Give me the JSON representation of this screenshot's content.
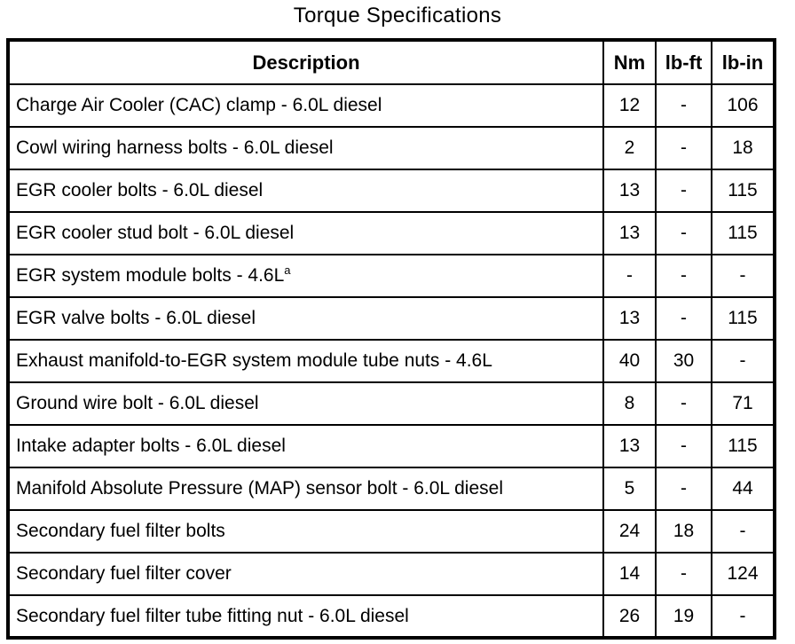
{
  "title": "Torque Specifications",
  "colors": {
    "background": "#ffffff",
    "border": "#000000",
    "text": "#000000"
  },
  "table": {
    "headers": [
      "Description",
      "Nm",
      "lb-ft",
      "lb-in"
    ],
    "rows": [
      {
        "description": "Charge Air Cooler (CAC) clamp - 6.0L diesel",
        "sup": "",
        "nm": "12",
        "lbft": "-",
        "lbin": "106"
      },
      {
        "description": "Cowl wiring harness bolts - 6.0L diesel",
        "sup": "",
        "nm": "2",
        "lbft": "-",
        "lbin": "18"
      },
      {
        "description": "EGR cooler bolts - 6.0L diesel",
        "sup": "",
        "nm": "13",
        "lbft": "-",
        "lbin": "115"
      },
      {
        "description": "EGR cooler stud bolt - 6.0L diesel",
        "sup": "",
        "nm": "13",
        "lbft": "-",
        "lbin": "115"
      },
      {
        "description": "EGR system module bolts - 4.6L",
        "sup": "a",
        "nm": "-",
        "lbft": "-",
        "lbin": "-"
      },
      {
        "description": "EGR valve bolts - 6.0L diesel",
        "sup": "",
        "nm": "13",
        "lbft": "-",
        "lbin": "115"
      },
      {
        "description": "Exhaust manifold-to-EGR system module tube nuts - 4.6L",
        "sup": "",
        "nm": "40",
        "lbft": "30",
        "lbin": "-"
      },
      {
        "description": "Ground wire bolt - 6.0L diesel",
        "sup": "",
        "nm": "8",
        "lbft": "-",
        "lbin": "71"
      },
      {
        "description": "Intake adapter bolts - 6.0L diesel",
        "sup": "",
        "nm": "13",
        "lbft": "-",
        "lbin": "115"
      },
      {
        "description": "Manifold Absolute Pressure (MAP) sensor bolt - 6.0L diesel",
        "sup": "",
        "nm": "5",
        "lbft": "-",
        "lbin": "44"
      },
      {
        "description": "Secondary fuel filter bolts",
        "sup": "",
        "nm": "24",
        "lbft": "18",
        "lbin": "-"
      },
      {
        "description": "Secondary fuel filter cover",
        "sup": "",
        "nm": "14",
        "lbft": "-",
        "lbin": "124"
      },
      {
        "description": "Secondary fuel filter tube fitting nut - 6.0L diesel",
        "sup": "",
        "nm": "26",
        "lbft": "19",
        "lbin": "-"
      }
    ]
  }
}
